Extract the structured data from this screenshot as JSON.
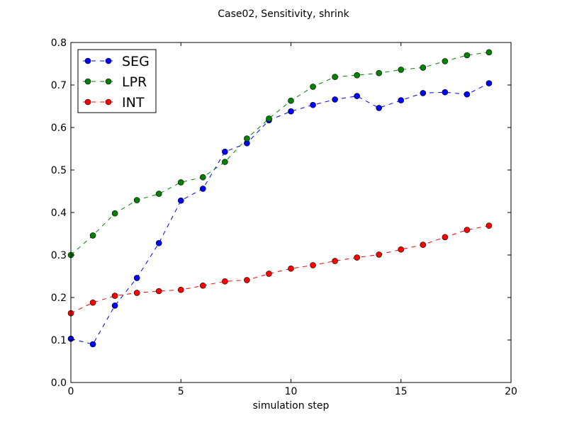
{
  "chart_data": {
    "type": "line",
    "title": "Case02, Sensitivity, shrink",
    "xlabel": "simulation step",
    "ylabel": "",
    "xlim": [
      0,
      20
    ],
    "ylim": [
      0,
      0.8
    ],
    "xticks": [
      0,
      5,
      10,
      15,
      20
    ],
    "yticks": [
      0.0,
      0.1,
      0.2,
      0.3,
      0.4,
      0.5,
      0.6,
      0.7,
      0.8
    ],
    "xtick_labels": [
      "0",
      "5",
      "10",
      "15",
      "20"
    ],
    "ytick_labels": [
      "0.0",
      "0.1",
      "0.2",
      "0.3",
      "0.4",
      "0.5",
      "0.6",
      "0.7",
      "0.8"
    ],
    "legend_position": "top-left",
    "x": [
      0,
      1,
      2,
      3,
      4,
      5,
      6,
      7,
      8,
      9,
      10,
      11,
      12,
      13,
      14,
      15,
      16,
      17,
      18,
      19
    ],
    "series": [
      {
        "name": "SEG",
        "color": "#0000ff",
        "values": [
          0.103,
          0.09,
          0.181,
          0.246,
          0.328,
          0.428,
          0.456,
          0.543,
          0.563,
          0.617,
          0.638,
          0.653,
          0.666,
          0.674,
          0.646,
          0.664,
          0.681,
          0.683,
          0.678,
          0.704
        ]
      },
      {
        "name": "LPR",
        "color": "#008000",
        "values": [
          0.3,
          0.346,
          0.398,
          0.429,
          0.444,
          0.471,
          0.483,
          0.519,
          0.574,
          0.621,
          0.663,
          0.696,
          0.719,
          0.723,
          0.728,
          0.736,
          0.741,
          0.756,
          0.77,
          0.777
        ]
      },
      {
        "name": "INT",
        "color": "#ff0000",
        "values": [
          0.163,
          0.188,
          0.204,
          0.211,
          0.215,
          0.218,
          0.228,
          0.238,
          0.241,
          0.256,
          0.268,
          0.276,
          0.286,
          0.294,
          0.301,
          0.313,
          0.324,
          0.342,
          0.359,
          0.369
        ]
      }
    ]
  }
}
